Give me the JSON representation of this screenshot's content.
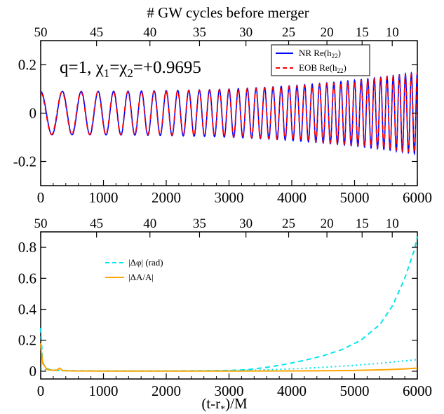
{
  "figure": {
    "top_axis_title": "# GW cycles before merger",
    "bottom_axis_title_main": "(t-r",
    "bottom_axis_title_sub": "*",
    "bottom_axis_title_tail": ")/M"
  },
  "chart_data": [
    {
      "type": "line",
      "panel": "top",
      "annotation": {
        "text_prefix": "q=1, χ",
        "sub1": "1",
        "text_mid": "=χ",
        "sub2": "2",
        "text_suffix": "=+0.9695"
      },
      "xlim": [
        0,
        6000
      ],
      "ylim": [
        -0.3,
        0.3
      ],
      "x_ticks": [
        0,
        1000,
        2000,
        3000,
        4000,
        5000,
        6000
      ],
      "y_ticks": [
        -0.2,
        0,
        0.2
      ],
      "y_tick_labels": [
        "-0.2",
        "0",
        "0.2"
      ],
      "top_ticks": [
        50,
        45,
        40,
        35,
        30,
        25,
        20,
        15,
        10
      ],
      "top_tick_x": [
        0,
        890,
        1740,
        2530,
        3270,
        3950,
        4560,
        5120,
        5600
      ],
      "legend_position": "top-right",
      "grid": false,
      "series": [
        {
          "name": "NR Re(h",
          "name_sub": "22",
          "name_tail": ")",
          "color": "#0000ff",
          "dash": "solid",
          "waveform": {
            "amp_start": 0.09,
            "amp_end": 0.17,
            "cycles_start": 50,
            "cycles_end": 10,
            "phase_offset": 0
          }
        },
        {
          "name": "EOB Re(h",
          "name_sub": "22",
          "name_tail": ")",
          "color": "#ff0000",
          "dash": "dashed",
          "waveform": {
            "amp_start": 0.088,
            "amp_end": 0.165,
            "cycles_start": 50,
            "cycles_end": 10,
            "phase_offset": 0.12
          }
        }
      ]
    },
    {
      "type": "line",
      "panel": "bottom",
      "xlim": [
        0,
        6000
      ],
      "ylim": [
        -0.05,
        0.9
      ],
      "x_ticks": [
        0,
        1000,
        2000,
        3000,
        4000,
        5000,
        6000
      ],
      "y_ticks": [
        0,
        0.2,
        0.4,
        0.6,
        0.8
      ],
      "y_tick_labels": [
        "0",
        "0.2",
        "0.4",
        "0.6",
        "0.8"
      ],
      "top_ticks": [
        50,
        45,
        40,
        35,
        30,
        25,
        20,
        15,
        10
      ],
      "top_tick_x": [
        0,
        890,
        1740,
        2530,
        3270,
        3950,
        4560,
        5120,
        5600
      ],
      "legend_position": "top-left",
      "grid": false,
      "series": [
        {
          "name": "|Δφ| (rad)",
          "color": "#00e5ee",
          "dash": "dashed",
          "x": [
            0,
            30,
            80,
            150,
            300,
            600,
            1000,
            1500,
            2000,
            2500,
            3000,
            3300,
            3600,
            3900,
            4200,
            4500,
            4800,
            5100,
            5400,
            5600,
            5800,
            5950,
            6000
          ],
          "y": [
            0.28,
            0.06,
            0.02,
            0.01,
            0.005,
            0.003,
            0.002,
            0.002,
            0.002,
            0.003,
            0.005,
            0.01,
            0.025,
            0.045,
            0.07,
            0.1,
            0.14,
            0.2,
            0.3,
            0.42,
            0.6,
            0.78,
            0.87
          ]
        },
        {
          "name": "|Δφ| dotted",
          "legend": false,
          "color": "#00e5ee",
          "dash": "dotted",
          "x": [
            0,
            100,
            500,
            1000,
            2000,
            3000,
            3500,
            4000,
            4500,
            5000,
            5500,
            6000
          ],
          "y": [
            0.02,
            0.006,
            0.002,
            0.001,
            0.001,
            0.004,
            0.008,
            0.015,
            0.025,
            0.038,
            0.055,
            0.075
          ]
        },
        {
          "name": "|ΔA/A|",
          "color": "#ffa500",
          "dash": "solid",
          "x": [
            0,
            30,
            60,
            100,
            150,
            250,
            300,
            350,
            500,
            1000,
            2000,
            3000,
            4000,
            4500,
            5000,
            5500,
            5800,
            6000
          ],
          "y": [
            0.18,
            0.05,
            0.035,
            0.012,
            0.008,
            0.005,
            0.02,
            0.004,
            0.002,
            0.001,
            0.001,
            0.001,
            0.002,
            0.003,
            0.005,
            0.01,
            0.015,
            0.02
          ]
        }
      ]
    }
  ]
}
